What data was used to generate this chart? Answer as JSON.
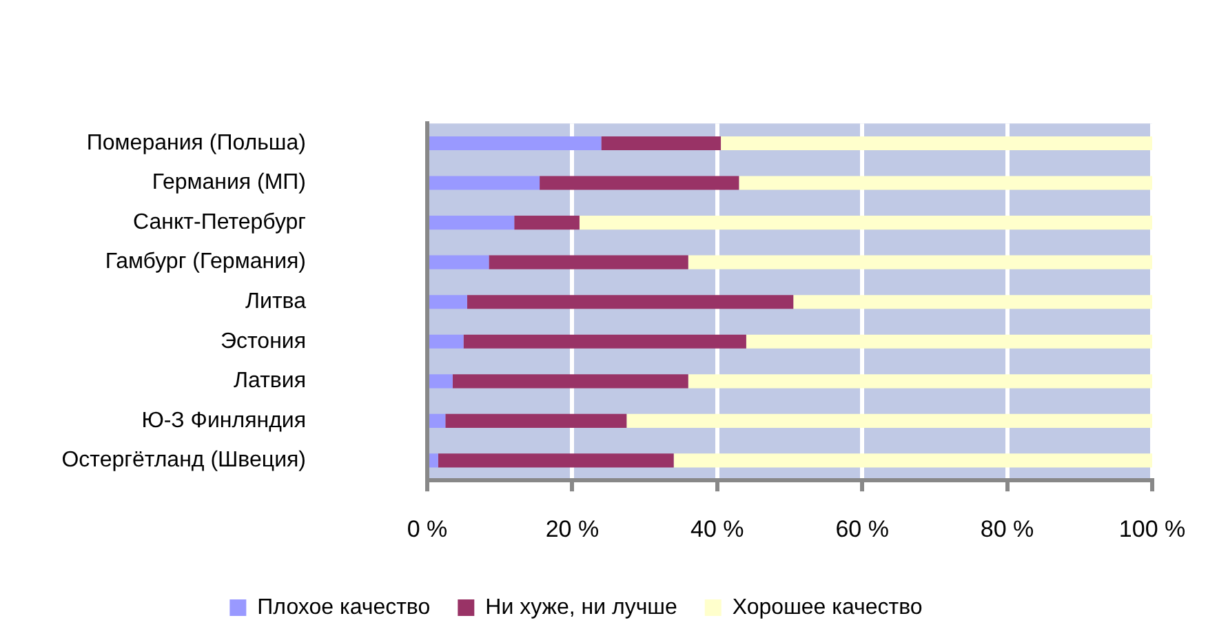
{
  "chart_data": {
    "type": "bar",
    "orientation": "horizontal",
    "stacked": true,
    "categories": [
      "Померания (Польша)",
      "Германия (МП)",
      "Санкт-Петербург",
      "Гамбург (Германия)",
      "Литва",
      "Эстония",
      "Латвия",
      "Ю-З Финляндия",
      "Остергётланд (Швеция)"
    ],
    "series": [
      {
        "name": "Плохое качество",
        "color": "#9999ff",
        "values": [
          24,
          15.5,
          12,
          8.5,
          5.5,
          5,
          3.5,
          2.5,
          1.5
        ]
      },
      {
        "name": "Ни хуже, ни лучше",
        "color": "#993366",
        "values": [
          16.5,
          27.5,
          9,
          27.5,
          45,
          39,
          32.5,
          25,
          32.5
        ]
      },
      {
        "name": "Хорошее качество",
        "color": "#ffffcc",
        "values": [
          59.5,
          57,
          79,
          64,
          49.5,
          56,
          64,
          72.5,
          66
        ]
      }
    ],
    "xlim": [
      0,
      100
    ],
    "xticks": [
      {
        "value": 0,
        "label": "0 %"
      },
      {
        "value": 20,
        "label": "20 %"
      },
      {
        "value": 40,
        "label": "40 %"
      },
      {
        "value": 60,
        "label": "60 %"
      },
      {
        "value": 80,
        "label": "80 %"
      },
      {
        "value": 100,
        "label": "100 %"
      }
    ],
    "grid": "x",
    "legend": "bottom"
  }
}
